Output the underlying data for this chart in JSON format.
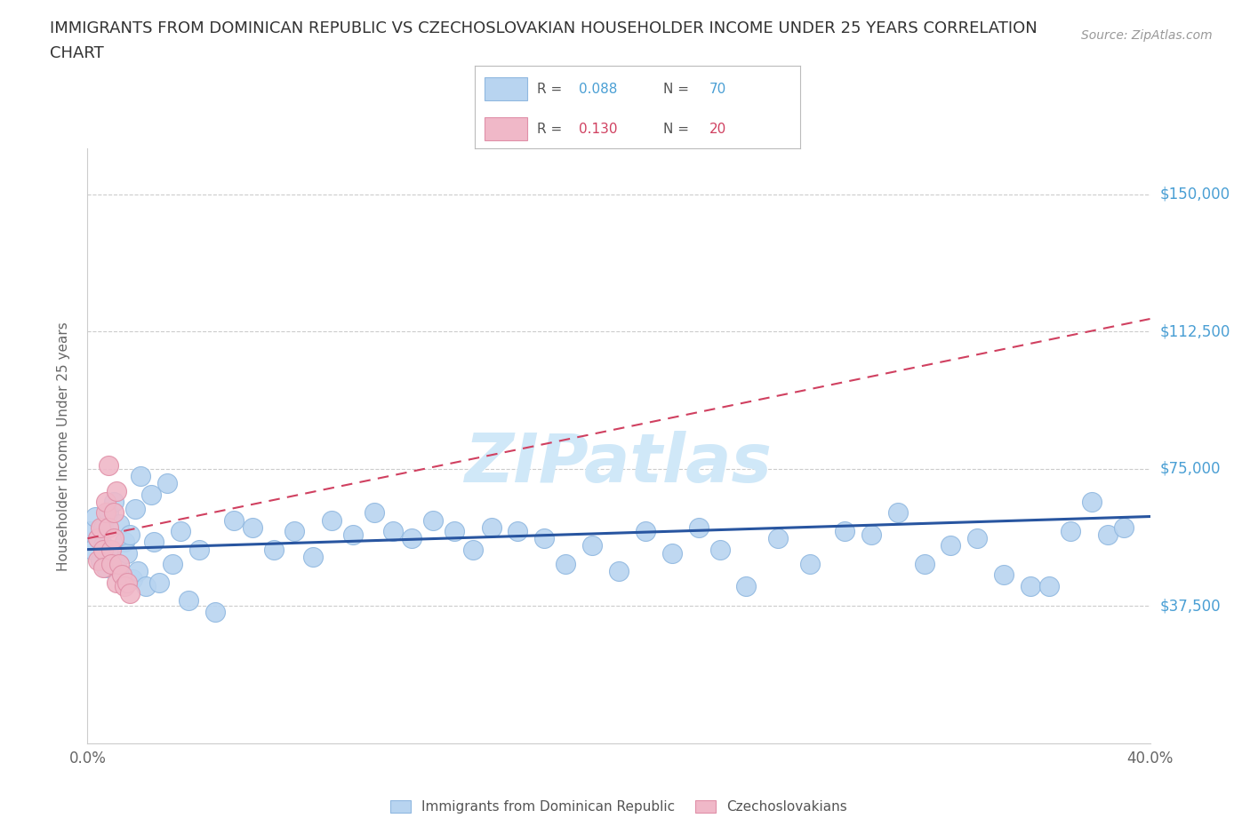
{
  "title_line1": "IMMIGRANTS FROM DOMINICAN REPUBLIC VS CZECHOSLOVAKIAN HOUSEHOLDER INCOME UNDER 25 YEARS CORRELATION",
  "title_line2": "CHART",
  "source": "Source: ZipAtlas.com",
  "ylabel": "Householder Income Under 25 years",
  "xlim": [
    0,
    0.4
  ],
  "ylim": [
    0,
    162500
  ],
  "yticks": [
    0,
    37500,
    75000,
    112500,
    150000
  ],
  "ytick_right_labels": [
    "",
    "$37,500",
    "$75,000",
    "$112,500",
    "$150,000"
  ],
  "xticks": [
    0.0,
    0.1,
    0.2,
    0.3,
    0.4
  ],
  "xtick_labels": [
    "0.0%",
    "",
    "",
    "",
    "40.0%"
  ],
  "color_blue": "#b8d4f0",
  "color_pink": "#f0b8c8",
  "line_blue_color": "#2855a0",
  "line_pink_color": "#d04060",
  "watermark_color": "#d0e8f8",
  "blue_x": [
    0.001,
    0.002,
    0.003,
    0.004,
    0.005,
    0.006,
    0.006,
    0.007,
    0.008,
    0.009,
    0.01,
    0.011,
    0.012,
    0.013,
    0.014,
    0.015,
    0.016,
    0.017,
    0.018,
    0.019,
    0.02,
    0.022,
    0.024,
    0.025,
    0.027,
    0.03,
    0.032,
    0.035,
    0.038,
    0.042,
    0.048,
    0.055,
    0.062,
    0.07,
    0.078,
    0.085,
    0.092,
    0.1,
    0.108,
    0.115,
    0.122,
    0.13,
    0.138,
    0.145,
    0.152,
    0.162,
    0.172,
    0.18,
    0.19,
    0.2,
    0.21,
    0.22,
    0.23,
    0.238,
    0.248,
    0.26,
    0.272,
    0.285,
    0.295,
    0.305,
    0.315,
    0.325,
    0.335,
    0.345,
    0.355,
    0.362,
    0.37,
    0.378,
    0.384,
    0.39
  ],
  "blue_y": [
    58000,
    53000,
    62000,
    56000,
    50000,
    59000,
    54000,
    48000,
    63000,
    51000,
    66000,
    49000,
    60000,
    46000,
    55000,
    52000,
    57000,
    45000,
    64000,
    47000,
    73000,
    43000,
    68000,
    55000,
    44000,
    71000,
    49000,
    58000,
    39000,
    53000,
    36000,
    61000,
    59000,
    53000,
    58000,
    51000,
    61000,
    57000,
    63000,
    58000,
    56000,
    61000,
    58000,
    53000,
    59000,
    58000,
    56000,
    49000,
    54000,
    47000,
    58000,
    52000,
    59000,
    53000,
    43000,
    56000,
    49000,
    58000,
    57000,
    63000,
    49000,
    54000,
    56000,
    46000,
    43000,
    43000,
    58000,
    66000,
    57000,
    59000
  ],
  "pink_x": [
    0.004,
    0.004,
    0.005,
    0.006,
    0.006,
    0.007,
    0.007,
    0.008,
    0.008,
    0.009,
    0.009,
    0.01,
    0.01,
    0.011,
    0.011,
    0.012,
    0.013,
    0.014,
    0.015,
    0.016
  ],
  "pink_y": [
    56000,
    50000,
    59000,
    53000,
    48000,
    63000,
    66000,
    76000,
    59000,
    53000,
    49000,
    63000,
    56000,
    44000,
    69000,
    49000,
    46000,
    43000,
    44000,
    41000
  ],
  "blue_line_y0": 53000,
  "blue_line_y1": 62000,
  "pink_line_y0": 56000,
  "pink_line_y1": 116000
}
